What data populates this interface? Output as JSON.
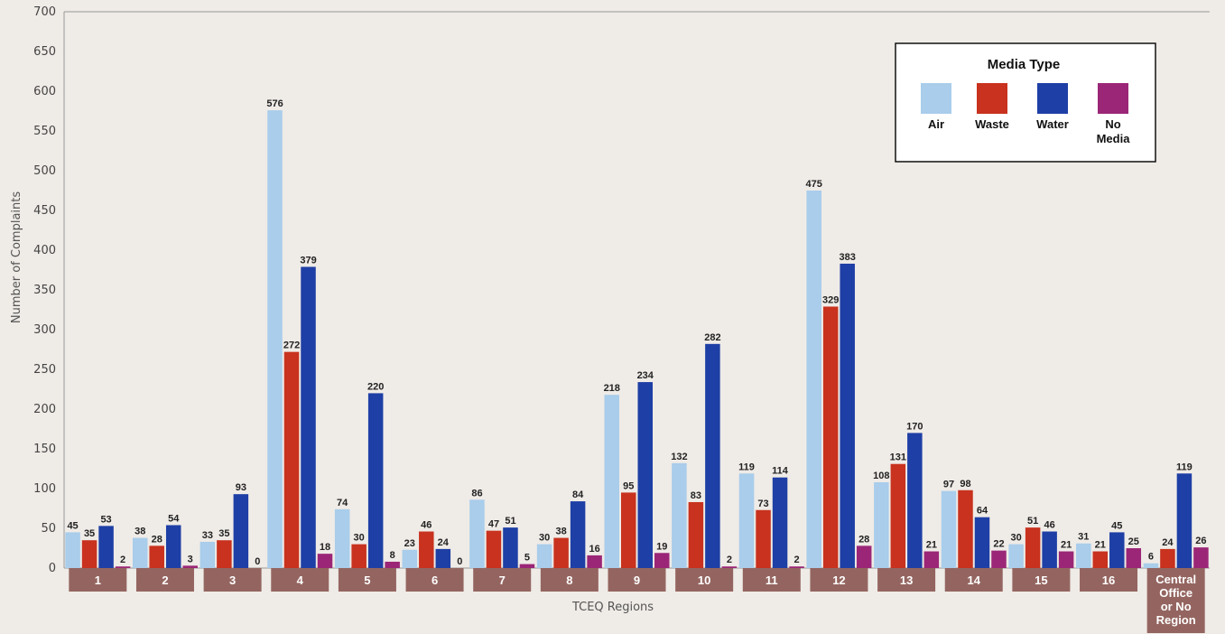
{
  "chart_data": {
    "type": "bar",
    "title": "",
    "xlabel": "TCEQ Regions",
    "ylabel": "Number of Complaints",
    "ylim": [
      0,
      700
    ],
    "yticks": [
      0,
      50,
      100,
      150,
      200,
      250,
      300,
      350,
      400,
      450,
      500,
      550,
      600,
      650,
      700
    ],
    "categories": [
      [
        "1"
      ],
      [
        "2"
      ],
      [
        "3"
      ],
      [
        "4"
      ],
      [
        "5"
      ],
      [
        "6"
      ],
      [
        "7"
      ],
      [
        "8"
      ],
      [
        "9"
      ],
      [
        "10"
      ],
      [
        "11"
      ],
      [
        "12"
      ],
      [
        "13"
      ],
      [
        "14"
      ],
      [
        "15"
      ],
      [
        "16"
      ],
      [
        "Central",
        "Office",
        "or No",
        "Region"
      ]
    ],
    "legend": {
      "title": "Media Type",
      "placement": "top-right"
    },
    "series": [
      {
        "name": [
          "Air"
        ],
        "color": "#a9cdeb",
        "values": [
          45,
          38,
          33,
          576,
          74,
          23,
          86,
          30,
          218,
          132,
          119,
          475,
          108,
          97,
          30,
          31,
          6
        ]
      },
      {
        "name": [
          "Waste"
        ],
        "color": "#c8321e",
        "values": [
          35,
          28,
          35,
          272,
          30,
          46,
          47,
          38,
          95,
          83,
          73,
          329,
          131,
          98,
          51,
          21,
          24
        ]
      },
      {
        "name": [
          "Water"
        ],
        "color": "#1e3fa5",
        "values": [
          53,
          54,
          93,
          379,
          220,
          24,
          51,
          84,
          234,
          282,
          114,
          383,
          170,
          64,
          46,
          45,
          119
        ]
      },
      {
        "name": [
          "No",
          "Media"
        ],
        "color": "#9b2677",
        "values": [
          2,
          3,
          0,
          18,
          8,
          0,
          5,
          16,
          19,
          2,
          2,
          28,
          21,
          22,
          21,
          25,
          26
        ]
      }
    ],
    "category_box_color": "#946560",
    "grid": false
  }
}
